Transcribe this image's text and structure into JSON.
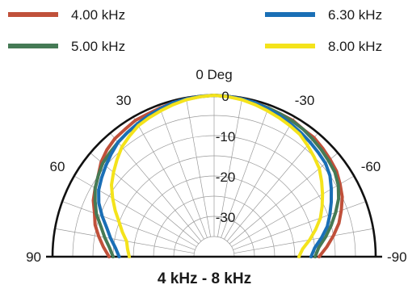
{
  "chart_data": {
    "type": "polar",
    "title": "4 kHz - 8 kHz",
    "top_angle_label": "0 Deg",
    "legend_placement": "top",
    "grid": true,
    "angle_range": [
      -90,
      90
    ],
    "angle_ticks": [
      {
        "angle": 90,
        "label": "90"
      },
      {
        "angle": 60,
        "label": "60"
      },
      {
        "angle": 30,
        "label": "30"
      },
      {
        "angle": -30,
        "label": "-30"
      },
      {
        "angle": -60,
        "label": "-60"
      },
      {
        "angle": -90,
        "label": "-90"
      }
    ],
    "radial_unit": "dB",
    "radial_range": [
      -40,
      0
    ],
    "radial_ticks": [
      {
        "value": 0,
        "label": "0"
      },
      {
        "value": -10,
        "label": "-10"
      },
      {
        "value": -20,
        "label": "-20"
      },
      {
        "value": -30,
        "label": "-30"
      }
    ],
    "angles": [
      -90,
      -85,
      -80,
      -75,
      -70,
      -65,
      -60,
      -55,
      -50,
      -45,
      -40,
      -35,
      -30,
      -25,
      -20,
      -15,
      -10,
      -5,
      0,
      5,
      10,
      15,
      20,
      25,
      30,
      35,
      40,
      45,
      50,
      55,
      60,
      65,
      70,
      75,
      80,
      85,
      90
    ],
    "series": [
      {
        "name": "4.00 kHz",
        "color": "#c0503a",
        "values": [
          -14,
          -12,
          -10,
          -8,
          -6.5,
          -5,
          -4,
          -3,
          -2.5,
          -2,
          -1.5,
          -1.5,
          -1,
          -1,
          -0.8,
          -0.5,
          -0.3,
          -0.1,
          0,
          -0.1,
          -0.3,
          -0.5,
          -0.8,
          -1,
          -1,
          -1.5,
          -1.8,
          -2.5,
          -3.5,
          -5,
          -6,
          -7,
          -8.5,
          -9.5,
          -11,
          -12.5,
          -14
        ]
      },
      {
        "name": "5.00 kHz",
        "color": "#457a55",
        "values": [
          -15,
          -14,
          -12,
          -10,
          -8,
          -6,
          -4.5,
          -3.5,
          -3,
          -2.5,
          -2,
          -1.5,
          -1.2,
          -1,
          -0.8,
          -0.6,
          -0.4,
          -0.2,
          0,
          -0.2,
          -0.4,
          -0.7,
          -1,
          -1.5,
          -2,
          -2.5,
          -3,
          -3.5,
          -4,
          -5,
          -6,
          -7.5,
          -9,
          -11,
          -12.5,
          -14,
          -15
        ]
      },
      {
        "name": "6.30 kHz",
        "color": "#1a6fb6",
        "values": [
          -16,
          -15,
          -13,
          -11,
          -9.5,
          -8,
          -6.5,
          -5,
          -4,
          -3.5,
          -3,
          -2.5,
          -2,
          -1.5,
          -1,
          -0.5,
          -0.3,
          -0.1,
          0,
          -0.1,
          -0.3,
          -0.5,
          -1,
          -1.5,
          -2,
          -2.5,
          -3,
          -4,
          -5,
          -6,
          -7,
          -8.5,
          -10.5,
          -12.5,
          -14,
          -15.5,
          -16.5
        ]
      },
      {
        "name": "8.00 kHz",
        "color": "#f4e31b",
        "values": [
          -19,
          -18,
          -16,
          -14,
          -12,
          -10.5,
          -9,
          -7.5,
          -6,
          -5,
          -4,
          -3,
          -2.5,
          -2,
          -1.5,
          -1,
          -0.5,
          -0.2,
          0,
          -0.2,
          -0.5,
          -1,
          -1.5,
          -2,
          -2.5,
          -3.5,
          -4.5,
          -6,
          -7.5,
          -9,
          -11,
          -13,
          -15,
          -16.5,
          -18,
          -18.5,
          -19
        ]
      }
    ]
  }
}
